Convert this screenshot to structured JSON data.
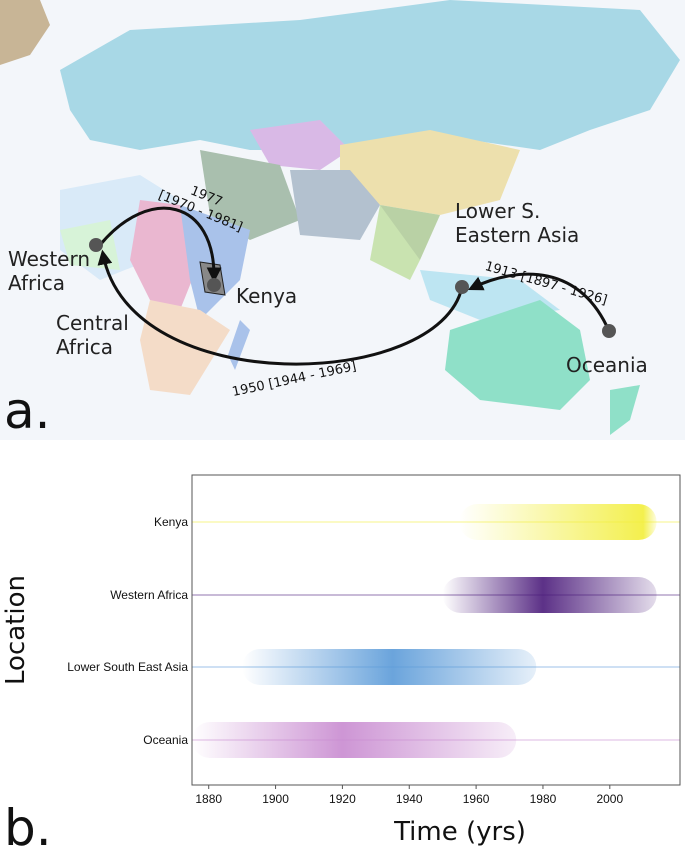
{
  "panel_a": {
    "letter": "a.",
    "regions": [
      {
        "label": [
          "Western",
          "Africa"
        ]
      },
      {
        "label": [
          "Central",
          "Africa"
        ]
      },
      {
        "label": [
          "Kenya"
        ]
      },
      {
        "label": [
          "Lower S.",
          "Eastern Asia"
        ]
      },
      {
        "label": [
          "Oceania"
        ]
      }
    ],
    "migrations": [
      {
        "label": [
          "1977",
          "[1970 - 1981]"
        ]
      },
      {
        "label": [
          "1950 [1944 - 1969]"
        ]
      },
      {
        "label": [
          "1913 [1897 - 1926]"
        ]
      }
    ]
  },
  "chart_data": {
    "type": "density",
    "letter": "b.",
    "xlabel": "Time (yrs)",
    "ylabel": "Location",
    "categories": [
      "Kenya",
      "Western Africa",
      "Lower South East Asia",
      "Oceania"
    ],
    "colors": [
      "#f2ee3a",
      "#4a1a7a",
      "#5a9ad8",
      "#c88ad0"
    ],
    "ranges": [
      [
        1955,
        2014
      ],
      [
        1950,
        2014
      ],
      [
        1890,
        1978
      ],
      [
        1875,
        1972
      ]
    ],
    "peaks": [
      2010,
      1980,
      1935,
      1920
    ],
    "xlim": [
      1875,
      2021
    ],
    "xticks": [
      1880,
      1900,
      1920,
      1940,
      1960,
      1980,
      2000
    ]
  }
}
